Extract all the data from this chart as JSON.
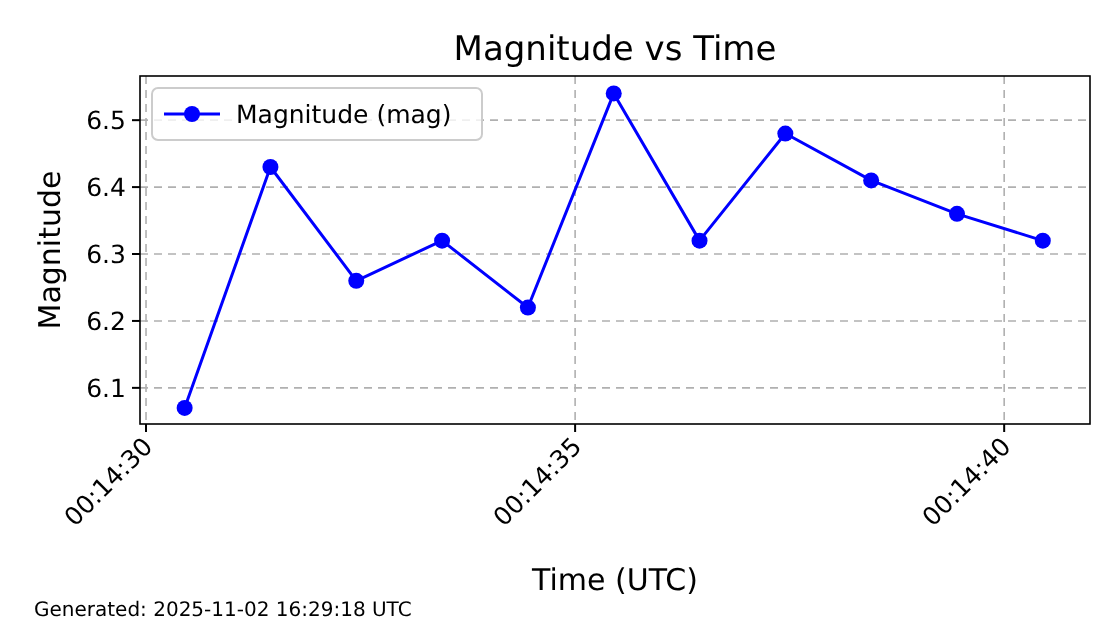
{
  "chart_data": {
    "type": "line",
    "title": "Magnitude vs Time",
    "xlabel": "Time (UTC)",
    "ylabel": "Magnitude",
    "x": [
      0.2417917,
      0.2420694,
      0.2423472,
      0.242625,
      0.2429028,
      0.2431806,
      0.2434583,
      0.2437361,
      0.2440139,
      0.2442917,
      0.2445694
    ],
    "series": [
      {
        "name": "Magnitude (mag)",
        "color": "#0000ff",
        "values": [
          6.07,
          6.43,
          6.26,
          6.32,
          6.22,
          6.54,
          6.32,
          6.48,
          6.41,
          6.36,
          6.32
        ]
      }
    ],
    "xlim": [
      0.2416472,
      0.2447222
    ],
    "xticks": [
      {
        "value": 0.2416667,
        "label": "00:14:30"
      },
      {
        "value": 0.2430556,
        "label": "00:14:35"
      },
      {
        "value": 0.2444444,
        "label": "00:14:40"
      }
    ],
    "ylim": [
      6.046,
      6.566
    ],
    "yticks": [
      6.1,
      6.2,
      6.3,
      6.4,
      6.5
    ],
    "grid": true,
    "legend": "top left",
    "marker": "circle",
    "line_style": "solid",
    "annotations": [
      "Generated: 2025-11-02 16:29:18 UTC"
    ]
  }
}
